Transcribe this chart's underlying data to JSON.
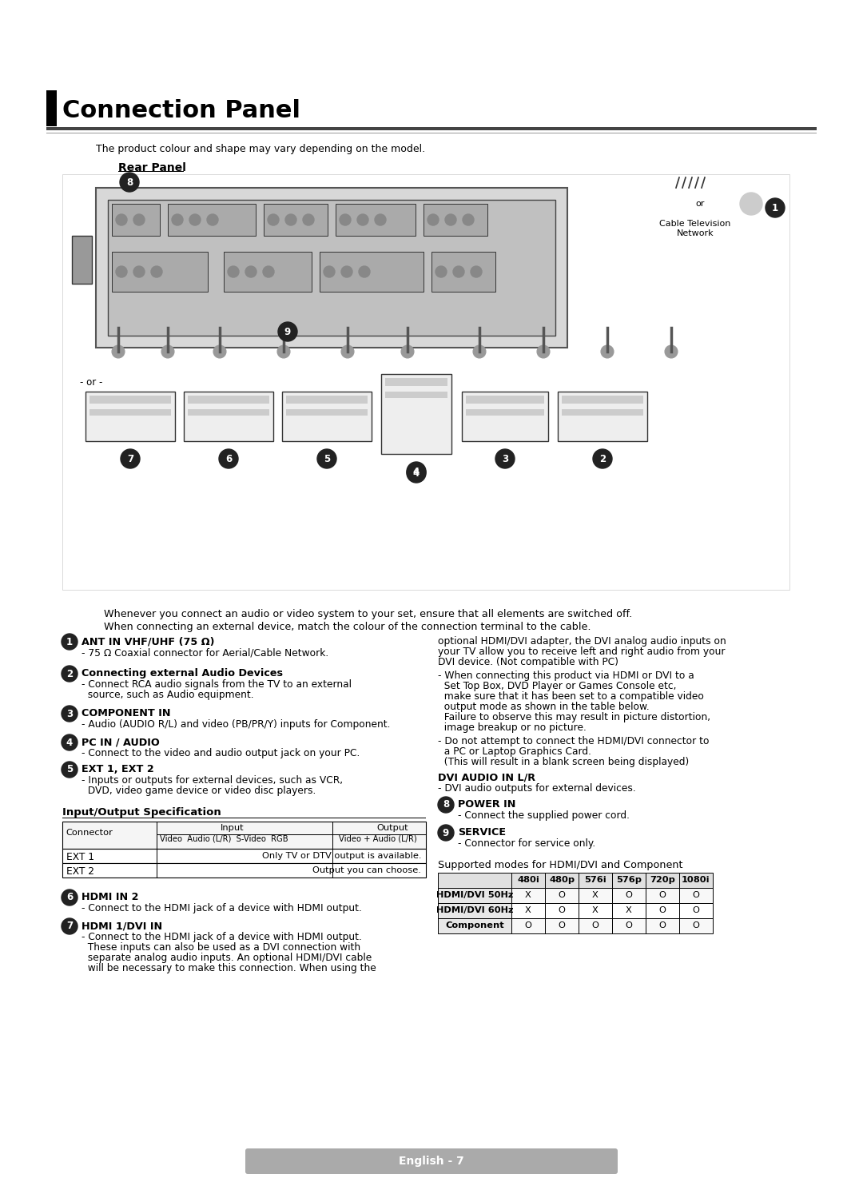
{
  "title": "Connection Panel",
  "subtitle": "The product colour and shape may vary depending on the model.",
  "rear_panel_label": "Rear Panel",
  "bg_color": "#ffffff",
  "page_footer": "English - 7",
  "intro_line1": "Whenever you connect an audio or video system to your set, ensure that all elements are switched off.",
  "intro_line2": "When connecting an external device, match the colour of the connection terminal to the cable.",
  "left_items": [
    {
      "num": "1",
      "bold": "ANT IN VHF/UHF (75 Ω)",
      "lines": [
        "- 75 Ω Coaxial connector for Aerial/Cable Network."
      ]
    },
    {
      "num": "2",
      "bold": "Connecting external Audio Devices",
      "lines": [
        "- Connect RCA audio signals from the TV to an external",
        "  source, such as Audio equipment."
      ]
    },
    {
      "num": "3",
      "bold": "COMPONENT IN",
      "lines": [
        "- Audio (AUDIO R/L) and video (PB/PR/Y) inputs for Component."
      ]
    },
    {
      "num": "4",
      "bold": "PC IN / AUDIO",
      "lines": [
        "- Connect to the video and audio output jack on your PC."
      ]
    },
    {
      "num": "5",
      "bold": "EXT 1, EXT 2",
      "lines": [
        "- Inputs or outputs for external devices, such as VCR,",
        "  DVD, video game device or video disc players."
      ]
    }
  ],
  "io_spec_title": "Input/Output Specification",
  "io_table_headers": [
    "Connector",
    "Input",
    "Output"
  ],
  "io_table_subheaders": [
    "",
    "Video  Audio (L/R)  S-Video  RGB",
    "Video + Audio (L/R)"
  ],
  "io_table_rows": [
    [
      "EXT 1",
      "",
      "Only TV or DTV output is available."
    ],
    [
      "EXT 2",
      "",
      "Output you can choose."
    ]
  ],
  "left_items2": [
    {
      "num": "6",
      "bold": "HDMI IN 2",
      "lines": [
        "- Connect to the HDMI jack of a device with HDMI output."
      ]
    },
    {
      "num": "7",
      "bold": "HDMI 1/DVI IN",
      "lines": [
        "- Connect to the HDMI jack of a device with HDMI output.",
        "  These inputs can also be used as a DVI connection with",
        "  separate analog audio inputs. An optional HDMI/DVI cable",
        "  will be necessary to make this connection. When using the"
      ]
    }
  ],
  "right_col_lines1": [
    "optional HDMI/DVI adapter, the DVI analog audio inputs on",
    "your TV allow you to receive left and right audio from your",
    "DVI device. (Not compatible with PC)"
  ],
  "right_col_lines2": [
    "- When connecting this product via HDMI or DVI to a",
    "  Set Top Box, DVD Player or Games Console etc,",
    "  make sure that it has been set to a compatible video",
    "  output mode as shown in the table below.",
    "  Failure to observe this may result in picture distortion,",
    "  image breakup or no picture."
  ],
  "right_col_lines3": [
    "- Do not attempt to connect the HDMI/DVI connector to",
    "  a PC or Laptop Graphics Card.",
    "  (This will result in a blank screen being displayed)"
  ],
  "dvi_audio_bold": "DVI AUDIO IN L/R",
  "dvi_audio_text": "- DVI audio outputs for external devices.",
  "right_items": [
    {
      "num": "8",
      "bold": "POWER IN",
      "lines": [
        "- Connect the supplied power cord."
      ]
    },
    {
      "num": "9",
      "bold": "SERVICE",
      "lines": [
        "- Connector for service only."
      ]
    }
  ],
  "support_table_title": "Supported modes for HDMI/DVI and Component",
  "support_table_headers": [
    "",
    "480i",
    "480p",
    "576i",
    "576p",
    "720p",
    "1080i"
  ],
  "support_table_rows": [
    [
      "HDMI/DVI 50Hz",
      "X",
      "O",
      "X",
      "O",
      "O",
      "O"
    ],
    [
      "HDMI/DVI 60Hz",
      "X",
      "O",
      "X",
      "X",
      "O",
      "O"
    ],
    [
      "Component",
      "O",
      "O",
      "O",
      "O",
      "O",
      "O"
    ]
  ]
}
